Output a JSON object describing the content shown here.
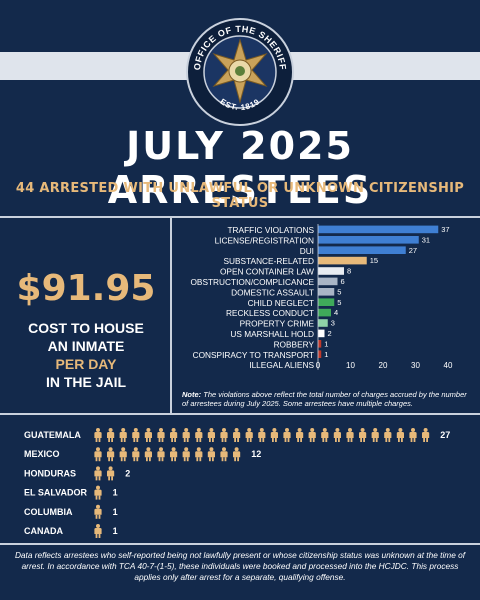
{
  "badge": {
    "ring_text_top": "OFFICE OF THE SHERIFF",
    "ring_text_bottom": "EST. 1819"
  },
  "header": {
    "title": "JULY 2025 ARRESTEES",
    "subtitle": "44 ARRESTED WITH UNLAWFUL OR UNKNOWN CITIZENSHIP STATUS"
  },
  "cost": {
    "value": "$91.95",
    "line1": "COST TO HOUSE",
    "line2": "AN INMATE",
    "line3": "PER DAY",
    "line4": "IN THE JAIL"
  },
  "chart_note": {
    "prefix": "Note:",
    "text": "The violations above reflect the total number of charges accrued by the number of arrestees during July 2025. Some arrestees have multiple charges."
  },
  "footer": {
    "text": "Data reflects arrestees who self-reported being not lawfully present or whose citizenship status was unknown at the time of arrest. In accordance with TCA 40-7-(1-5), these individuals were booked and processed into the HCJDC. This process applies only after arrest for a separate, qualifying offense."
  },
  "chart_data": [
    {
      "type": "bar",
      "orientation": "horizontal",
      "categories": [
        "TRAFFIC VIOLATIONS",
        "LICENSE/REGISTRATION",
        "DUI",
        "SUBSTANCE-RELATED",
        "OPEN CONTAINER LAW",
        "OBSTRUCTION/COMPLICANCE",
        "DOMESTIC ASSAULT",
        "CHILD NEGLECT",
        "RECKLESS CONDUCT",
        "PROPERTY CRIME",
        "US MARSHALL HOLD",
        "ROBBERY",
        "CONSPIRACY TO TRANSPORT",
        "ILLEGAL ALIENS"
      ],
      "values": [
        37,
        31,
        27,
        15,
        8,
        6,
        5,
        5,
        4,
        3,
        2,
        1,
        1,
        null
      ],
      "colors": [
        "#3f7fd3",
        "#3f7fd3",
        "#3f7fd3",
        "#e7b97a",
        "#e8ecf2",
        "#a9b5c6",
        "#a9b5c6",
        "#3faa5a",
        "#3faa5a",
        "#8fd3a8",
        "#ffffff",
        "#c0392b",
        "#c0392b",
        null
      ],
      "xticks": [
        0,
        10,
        20,
        30,
        40
      ],
      "xlim": [
        0,
        40
      ],
      "xlabel": "",
      "ylabel": "",
      "title": ""
    },
    {
      "type": "bar",
      "orientation": "horizontal",
      "icon": "person-icon",
      "categories": [
        "GUATEMALA",
        "MEXICO",
        "HONDURAS",
        "EL SALVADOR",
        "COLUMBIA",
        "CANADA"
      ],
      "values": [
        27,
        12,
        2,
        1,
        1,
        1
      ],
      "icon_color": "#e7b97a"
    }
  ]
}
